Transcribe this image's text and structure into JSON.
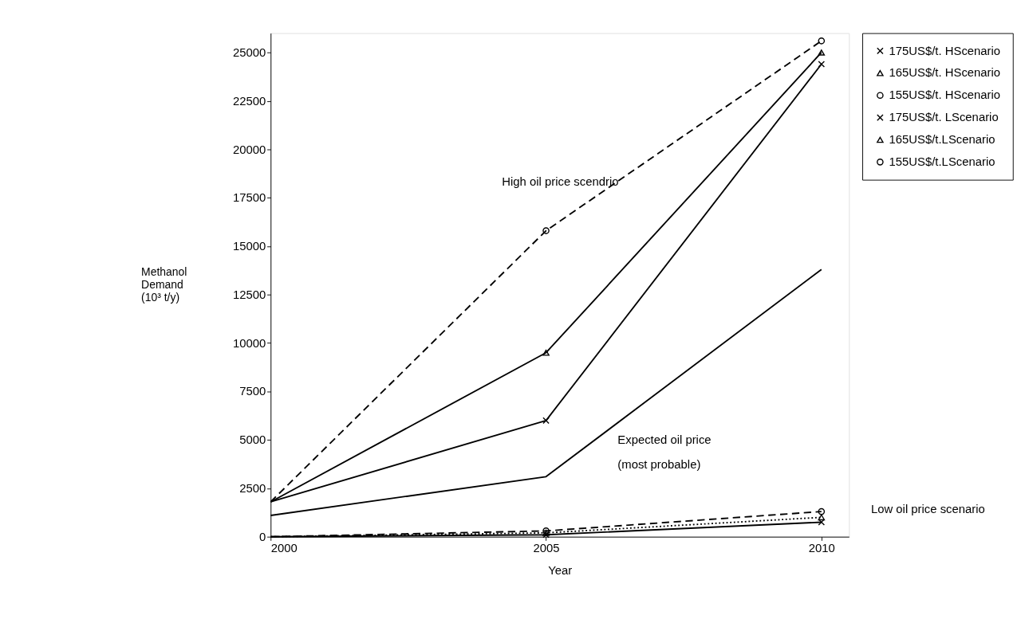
{
  "chart_data": {
    "type": "line",
    "xlabel": "Year",
    "ylabel": "Methanol Demand (10³ t/y)",
    "x": [
      2000,
      2005,
      2010
    ],
    "xlim": [
      2000,
      2010.5
    ],
    "xticks": [
      2000,
      2005,
      2010
    ],
    "ylim": [
      0,
      26000
    ],
    "yticks": [
      0,
      2500,
      5000,
      7500,
      10000,
      12500,
      15000,
      17500,
      20000,
      22500,
      25000
    ],
    "grid": false,
    "legend": "right",
    "series": [
      {
        "name": "175US$/t. HScenario",
        "color": "#000000",
        "marker": "cross",
        "line_style": "solid",
        "values": [
          1800,
          6000,
          24400
        ]
      },
      {
        "name": "165US$/t. HScenario",
        "color": "#000000",
        "marker": "triangle",
        "line_style": "solid",
        "values": [
          1800,
          9500,
          25000
        ]
      },
      {
        "name": "155US$/t. HScenario",
        "color": "#000000",
        "marker": "circle",
        "line_style": "dashed",
        "values": [
          1800,
          15800,
          25600
        ]
      },
      {
        "name": "175US$/t. LScenario",
        "color": "#000000",
        "marker": "cross",
        "line_style": "solid",
        "values": [
          0,
          100,
          750
        ]
      },
      {
        "name": "165US$/t.LScenario",
        "color": "#000000",
        "marker": "triangle",
        "line_style": "dotted",
        "values": [
          0,
          200,
          1000
        ]
      },
      {
        "name": "155US$/t.LScenario",
        "color": "#000000",
        "marker": "circle",
        "line_style": "dashed",
        "values": [
          0,
          300,
          1300
        ]
      },
      {
        "color": "#000000",
        "marker": "none",
        "line_style": "solid",
        "values": [
          1100,
          3100,
          13800
        ]
      }
    ],
    "annotations": [
      "High oil price scendrio",
      "Expected oil price",
      "(most probable)",
      "Low oil price scenario"
    ]
  }
}
